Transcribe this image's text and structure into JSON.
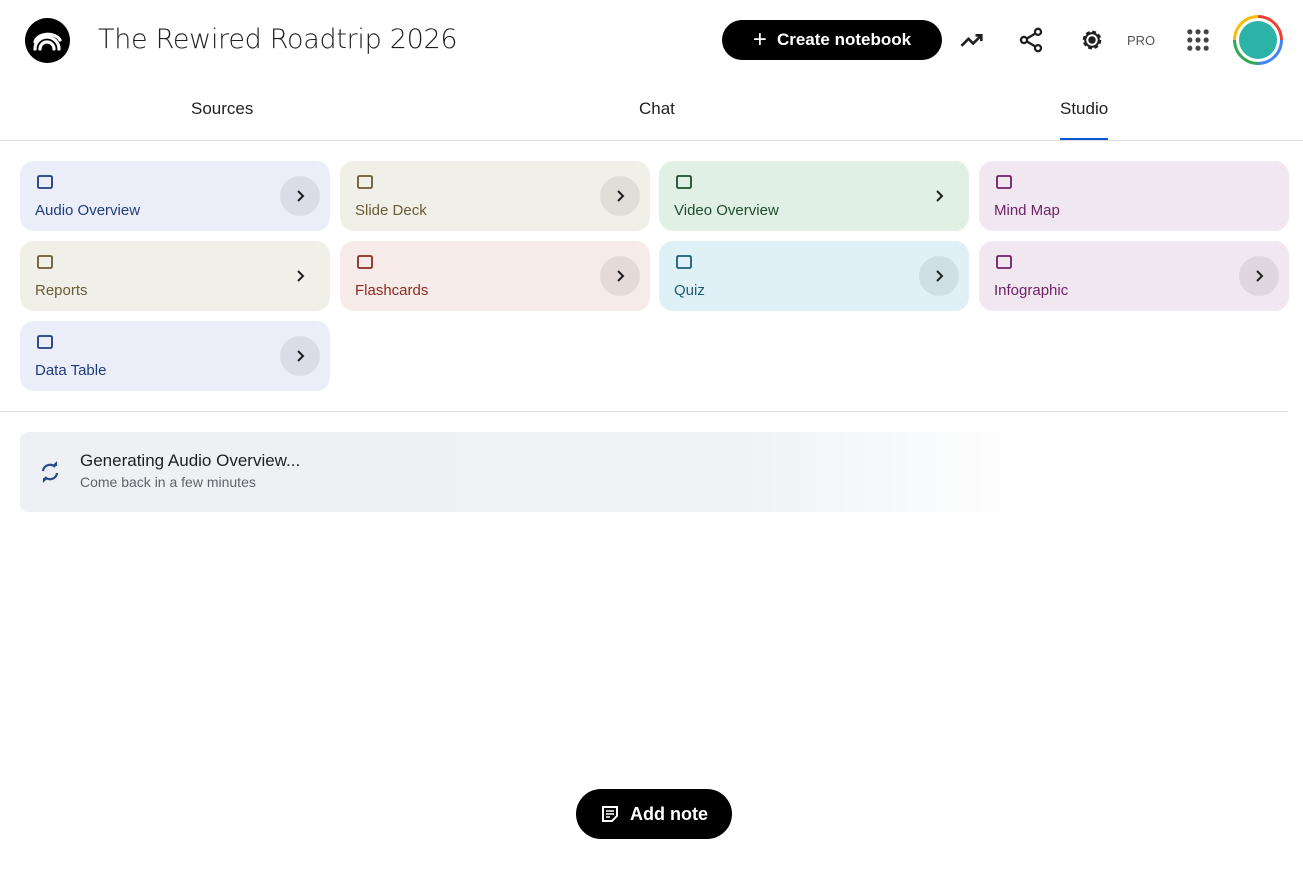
{
  "header": {
    "title": "The Rewired Roadtrip 2026",
    "create_label": "Create notebook",
    "pro_label": "PRO"
  },
  "tabs": [
    {
      "label": "Sources"
    },
    {
      "label": "Chat"
    },
    {
      "label": "Studio",
      "active": true
    }
  ],
  "studio": {
    "cards": [
      {
        "label": "Audio Overview",
        "icon": "audio-waveform-icon",
        "bg": "#ebeef9",
        "fg": "#1f3c7a"
      },
      {
        "label": "Slide Deck",
        "icon": "slides-icon",
        "bg": "#f1f0e8",
        "fg": "#6b5a36"
      },
      {
        "label": "Video Overview",
        "icon": "video-icon",
        "bg": "#e1f0e5",
        "fg": "#1e4d2b"
      },
      {
        "label": "Mind Map",
        "icon": "mind-map-icon",
        "bg": "#f1e7f0",
        "fg": "#6f2167"
      },
      {
        "label": "Reports",
        "icon": "reports-icon",
        "bg": "#f1f0e8",
        "fg": "#6b5a36"
      },
      {
        "label": "Flashcards",
        "icon": "flashcards-icon",
        "bg": "#f7ebe9",
        "fg": "#8a2b22"
      },
      {
        "label": "Quiz",
        "icon": "quiz-icon",
        "bg": "#dff0f6",
        "fg": "#195d7a"
      },
      {
        "label": "Infographic",
        "icon": "infographic-icon",
        "bg": "#f1e7f0",
        "fg": "#6f2167"
      },
      {
        "label": "Data Table",
        "icon": "data-table-icon",
        "bg": "#ebeef9",
        "fg": "#1f3c7a"
      }
    ]
  },
  "generating": {
    "title": "Generating Audio Overview...",
    "subtitle": "Come back in a few minutes"
  },
  "add_note_label": "Add note"
}
